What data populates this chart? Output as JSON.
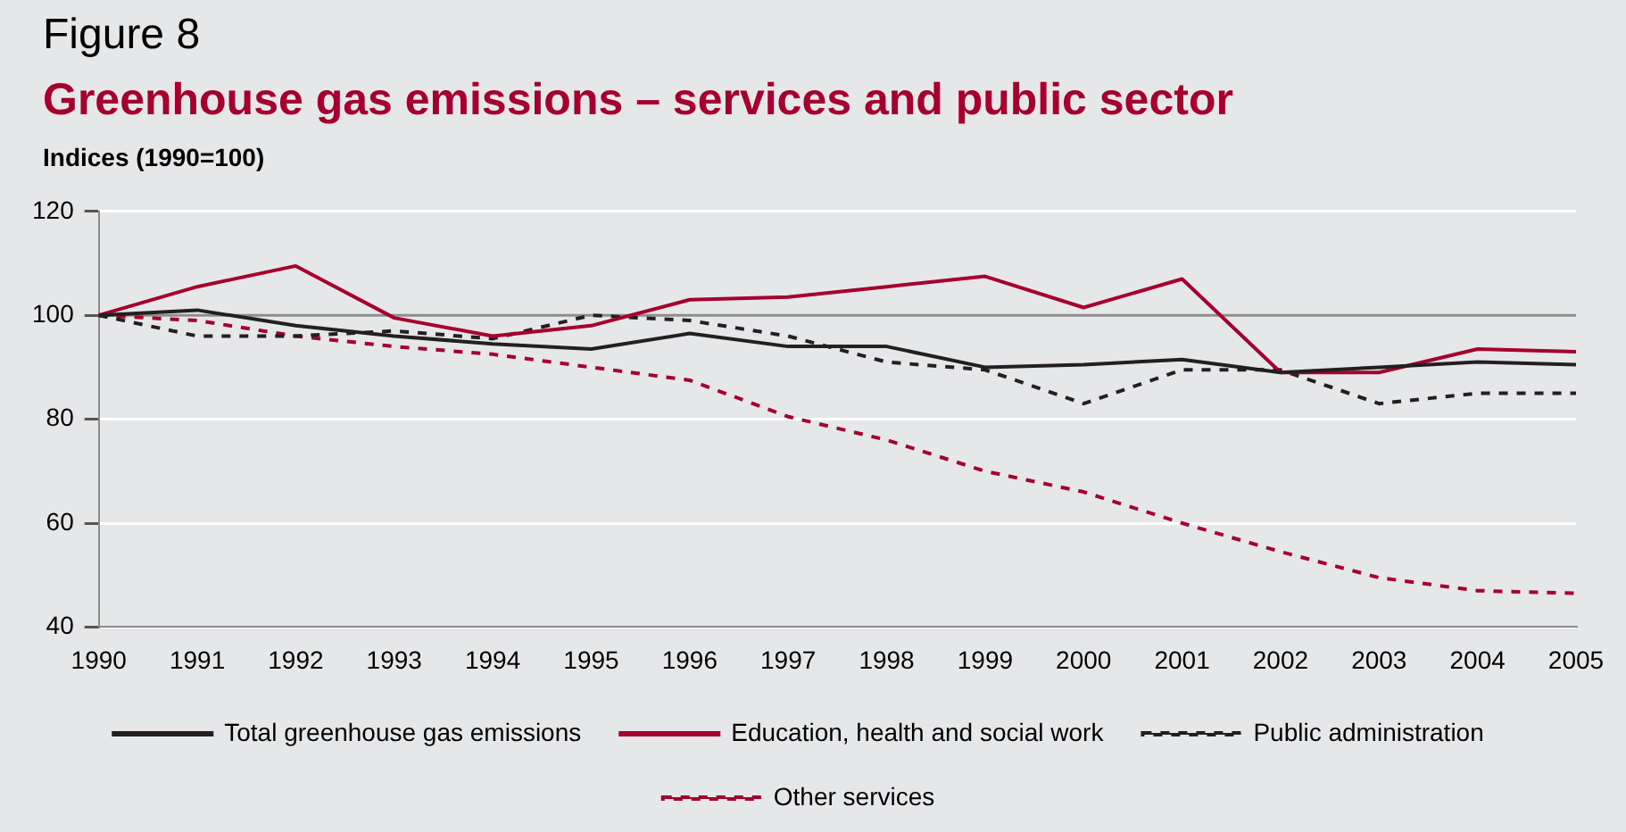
{
  "chart_data": {
    "type": "line",
    "title": "Greenhouse gas emissions – services and public sector",
    "ylabel": "Indices (1990=100)",
    "annotations": [
      "Figure 8"
    ],
    "categories": [
      "1990",
      "1991",
      "1992",
      "1993",
      "1994",
      "1995",
      "1996",
      "1997",
      "1998",
      "1999",
      "2000",
      "2001",
      "2002",
      "2003",
      "2004",
      "2005"
    ],
    "ylim": [
      40,
      120
    ],
    "yticks": [
      40,
      60,
      80,
      100,
      120
    ],
    "grid": "y",
    "legend": "bottom",
    "marker": "none",
    "ref_lines": [
      {
        "axis": "y",
        "value": 100,
        "color": "#8c8c8c"
      }
    ],
    "series": [
      {
        "name": "Total greenhouse gas emissions",
        "color": "#231f20",
        "line_style": "solid",
        "values": [
          100,
          101,
          98,
          96,
          94.5,
          93.5,
          96.5,
          94,
          94,
          90,
          90.5,
          91.5,
          89,
          90,
          91,
          90.5
        ]
      },
      {
        "name": "Education, health and social work",
        "color": "#a6002e",
        "line_style": "solid",
        "values": [
          100,
          105.5,
          109.5,
          99.5,
          96,
          98,
          103,
          103.5,
          105.5,
          107.5,
          101.5,
          107,
          89,
          89,
          93.5,
          93
        ]
      },
      {
        "name": "Public administration",
        "color": "#231f20",
        "line_style": "dashed",
        "values": [
          100,
          96,
          96,
          97,
          95.5,
          100,
          99,
          96,
          91,
          89.5,
          83,
          89.5,
          89.5,
          83,
          85,
          85
        ]
      },
      {
        "name": "Other services",
        "color": "#a6002e",
        "line_style": "dashed",
        "values": [
          100,
          99,
          96,
          94,
          92.5,
          90,
          87.5,
          80.5,
          76,
          70,
          66,
          60,
          54.5,
          49.5,
          47,
          46.5
        ]
      }
    ]
  }
}
